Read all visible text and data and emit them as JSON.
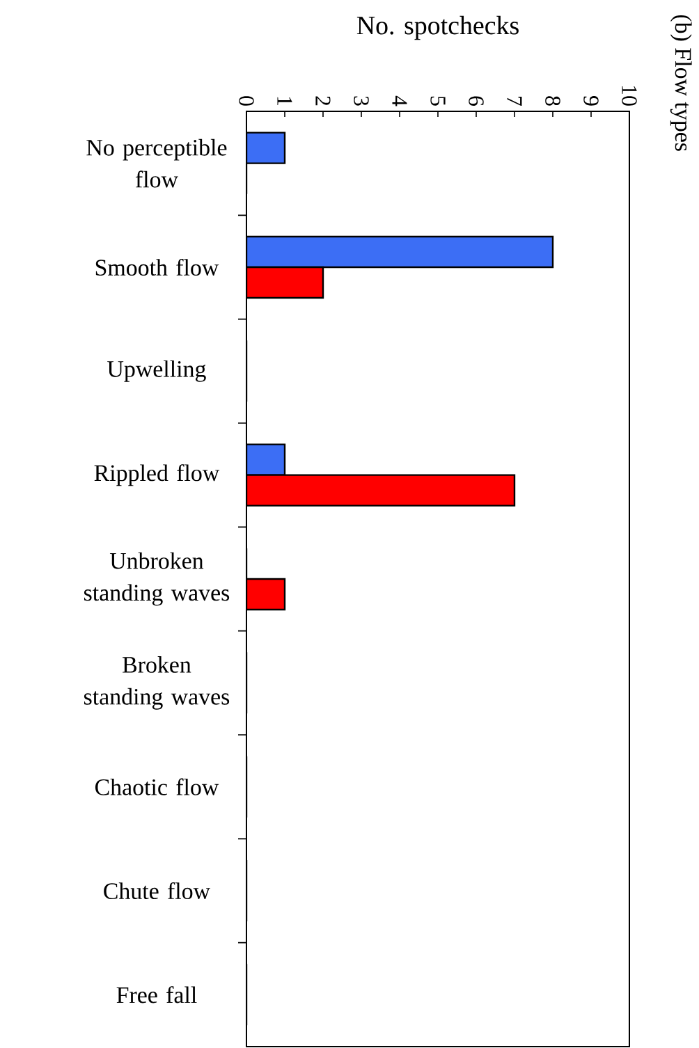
{
  "chart_data": {
    "type": "bar",
    "orientation": "horizontal",
    "title": "(b) Flow types",
    "xlabel": "No. spotchecks",
    "categories": [
      "No perceptible flow",
      "Smooth flow",
      "Upwelling",
      "Rippled flow",
      "Unbroken standing waves",
      "Broken standing waves",
      "Chaotic flow",
      "Chute flow",
      "Free fall"
    ],
    "series": [
      {
        "color": "#3c6ef5",
        "values": [
          1,
          8,
          0,
          1,
          0,
          0,
          0,
          0,
          0
        ]
      },
      {
        "color": "#ff0000",
        "values": [
          0,
          2,
          0,
          7,
          1,
          0,
          0,
          0,
          0
        ]
      }
    ],
    "xlim": [
      0,
      10
    ],
    "xticks": [
      0,
      1,
      2,
      3,
      4,
      5,
      6,
      7,
      8,
      9,
      10
    ],
    "grid": false
  }
}
